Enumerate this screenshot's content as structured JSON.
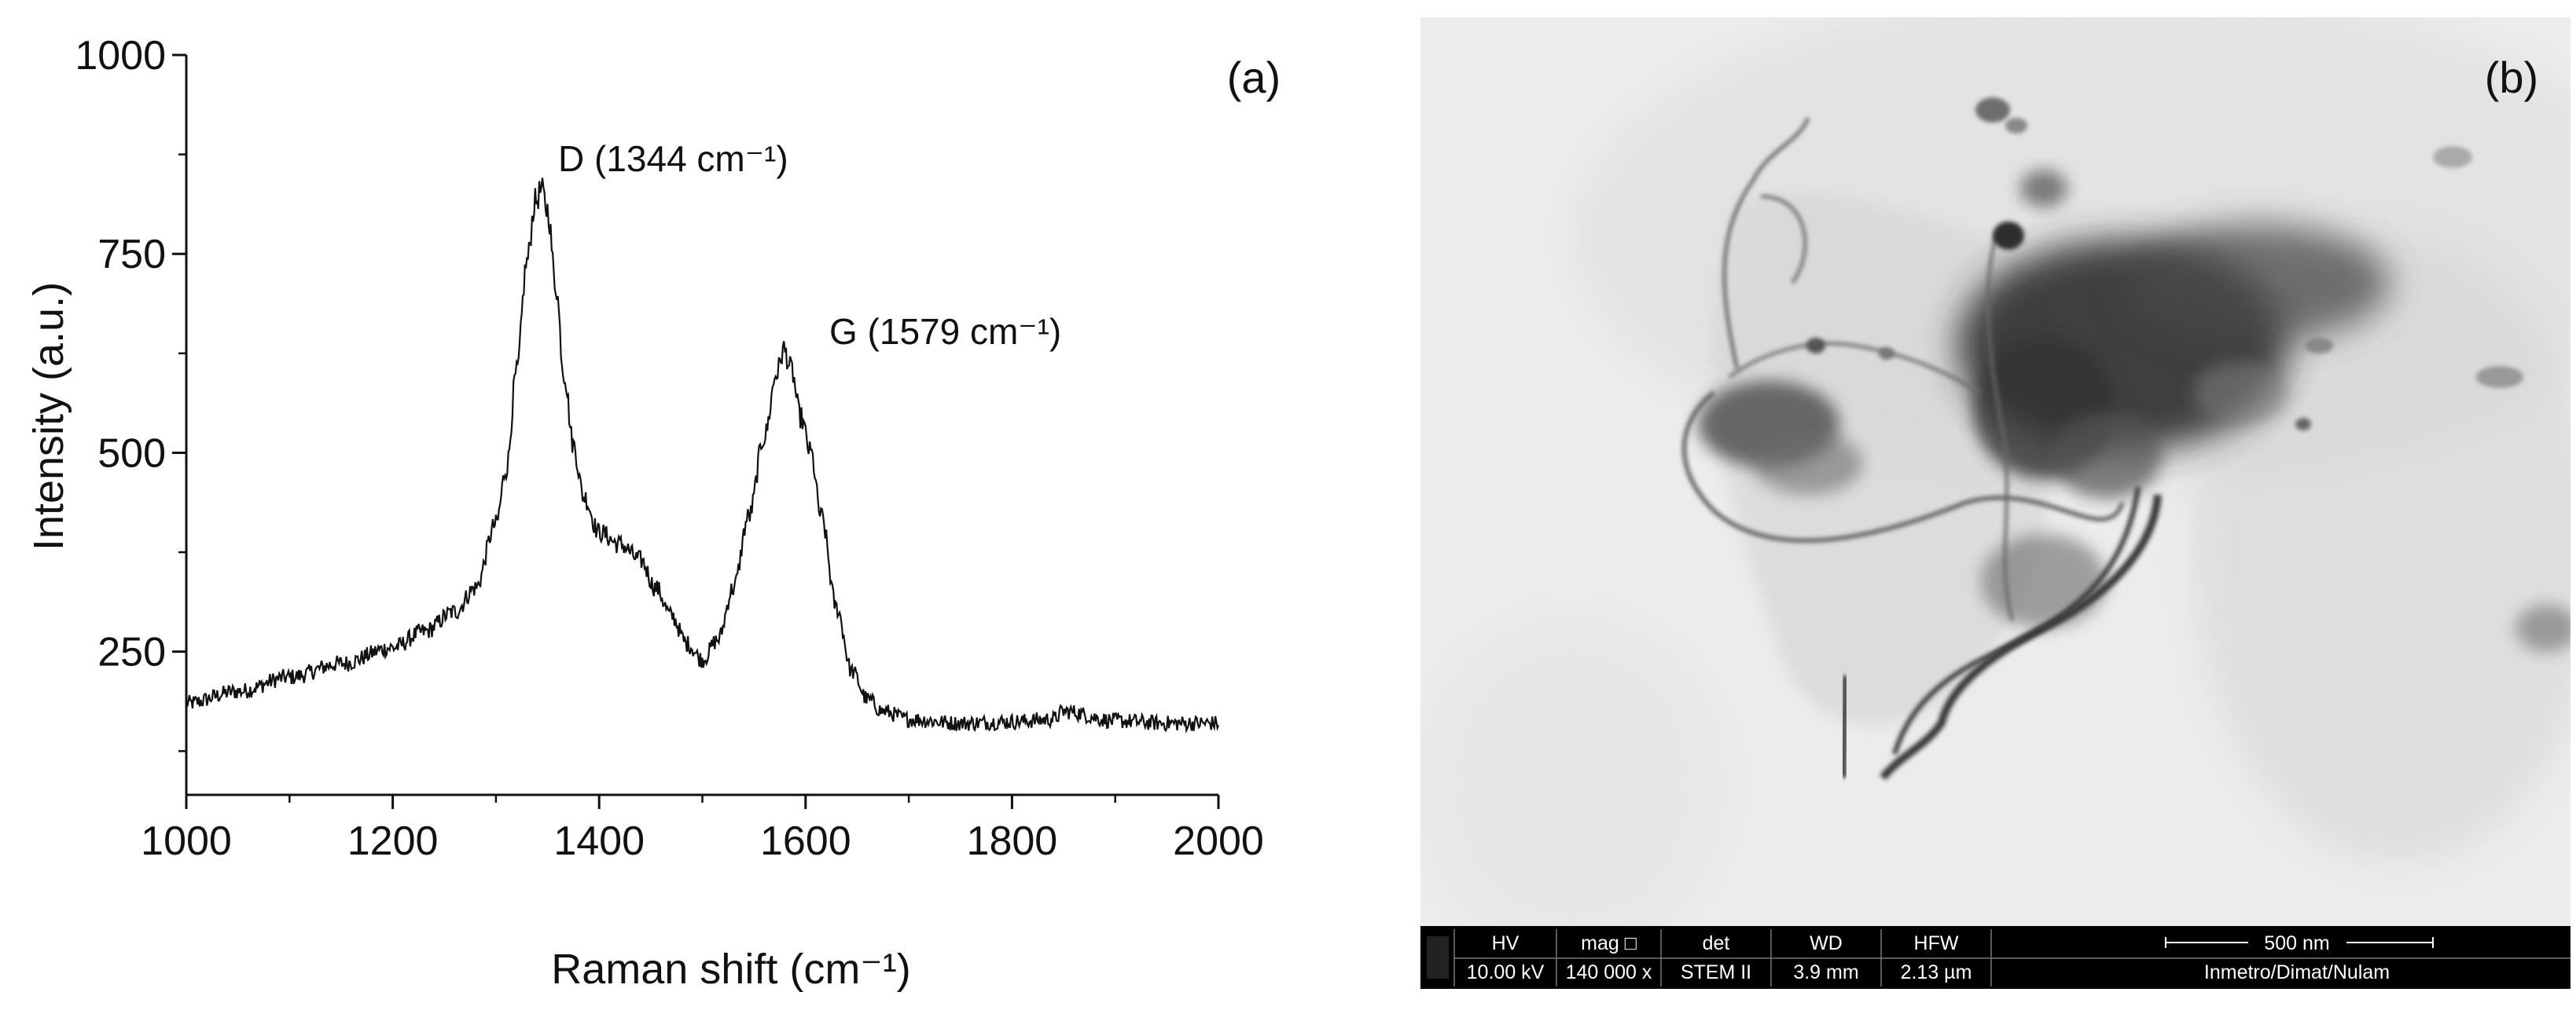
{
  "chart_data": [
    {
      "type": "line",
      "panel_label": "(a)",
      "xlabel": "Raman shift (cm⁻¹)",
      "ylabel": "Intensity (a.u.)",
      "xlim": [
        1000,
        2000
      ],
      "ylim": [
        70,
        1000
      ],
      "x_ticks": [
        1000,
        1200,
        1400,
        1600,
        1800,
        2000
      ],
      "x_tick_labels": [
        "1000",
        "1200",
        "1400",
        "1600",
        "1800",
        "2000"
      ],
      "y_ticks": [
        250,
        500,
        750,
        1000
      ],
      "y_tick_labels": [
        "250",
        "500",
        "750",
        "1000"
      ],
      "grid": false,
      "annotations": [
        {
          "text": "D (1344 cm⁻¹)",
          "x": 1344,
          "y": 835
        },
        {
          "text": "G (1579 cm⁻¹)",
          "x": 1579,
          "y": 635
        }
      ],
      "series": [
        {
          "name": "Raman spectrum",
          "x": [
            1000,
            1050,
            1100,
            1150,
            1200,
            1230,
            1260,
            1280,
            1300,
            1310,
            1320,
            1330,
            1338,
            1344,
            1350,
            1358,
            1366,
            1375,
            1385,
            1400,
            1420,
            1440,
            1455,
            1470,
            1485,
            1500,
            1515,
            1530,
            1545,
            1560,
            1572,
            1579,
            1586,
            1595,
            1605,
            1615,
            1630,
            1645,
            1660,
            1675,
            1700,
            1750,
            1800,
            1840,
            1850,
            1900,
            1950,
            2000
          ],
          "y": [
            185,
            200,
            218,
            235,
            255,
            275,
            300,
            330,
            410,
            480,
            600,
            740,
            815,
            830,
            805,
            710,
            600,
            510,
            445,
            400,
            385,
            365,
            330,
            295,
            260,
            240,
            265,
            330,
            420,
            520,
            600,
            630,
            605,
            545,
            500,
            420,
            305,
            225,
            190,
            175,
            165,
            160,
            162,
            165,
            175,
            163,
            160,
            160
          ]
        }
      ]
    }
  ],
  "micrograph": {
    "panel_label": "(b)",
    "info_bar": {
      "headers": [
        "HV",
        "mag □",
        "det",
        "WD",
        "HFW"
      ],
      "values": [
        "10.00 kV",
        "140 000 x",
        "STEM II",
        "3.9 mm",
        "2.13 µm"
      ],
      "scale_bar_label": "500 nm",
      "institution": "Inmetro/Dimat/Nulam"
    }
  }
}
